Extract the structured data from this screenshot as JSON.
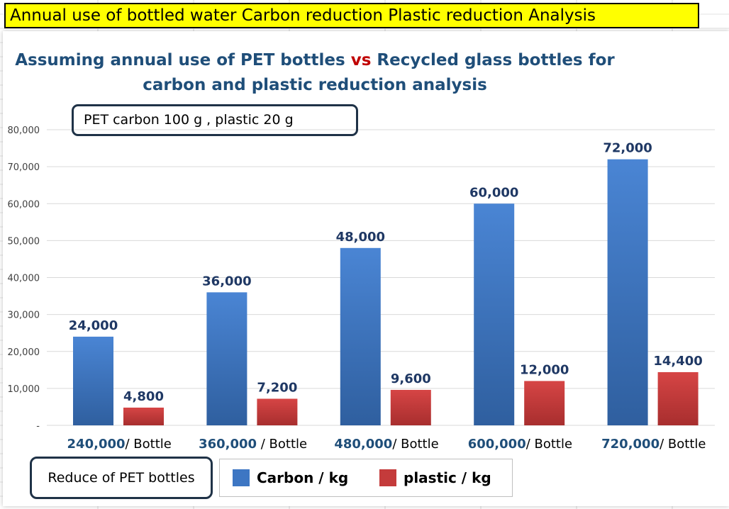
{
  "header": {
    "title": "Annual use of bottled water Carbon reduction Plastic reduction Analysis"
  },
  "chart": {
    "title_line1_a": "Assuming annual use of PET bottles ",
    "title_line1_vs": "vs",
    "title_line1_b": " Recycled glass bottles for",
    "title_line2": "carbon and plastic reduction analysis",
    "annotation": "PET carbon 100 g ,  plastic 20 g",
    "x_axis_title": "Reduce of PET bottles"
  },
  "colors": {
    "carbon": "#3d76c3",
    "plastic": "#c43b3b",
    "label": "#1f3864",
    "title": "#1f4e79",
    "vs": "#c00000"
  },
  "chart_data": {
    "type": "bar",
    "categories": [
      {
        "number": "240,000",
        "suffix": "/ Bottle"
      },
      {
        "number": "360,000",
        "suffix": " / Bottle"
      },
      {
        "number": "480,000",
        "suffix": "/ Bottle"
      },
      {
        "number": "600,000",
        "suffix": "/ Bottle"
      },
      {
        "number": "720,000",
        "suffix": "/ Bottle"
      }
    ],
    "series": [
      {
        "name": "Carbon / kg",
        "values": [
          24000,
          36000,
          48000,
          60000,
          72000
        ],
        "labels": [
          "24,000",
          "36,000",
          "48,000",
          "60,000",
          "72,000"
        ]
      },
      {
        "name": "plastic / kg",
        "values": [
          4800,
          7200,
          9600,
          12000,
          14400
        ],
        "labels": [
          "4,800",
          "7,200",
          "9,600",
          "12,000",
          "14,400"
        ]
      }
    ],
    "ylim": [
      0,
      80000
    ],
    "y_ticks": [
      "-",
      "10,000",
      "20,000",
      "30,000",
      "40,000",
      "50,000",
      "60,000",
      "70,000",
      "80,000"
    ],
    "grid": true,
    "legend": "bottom"
  }
}
